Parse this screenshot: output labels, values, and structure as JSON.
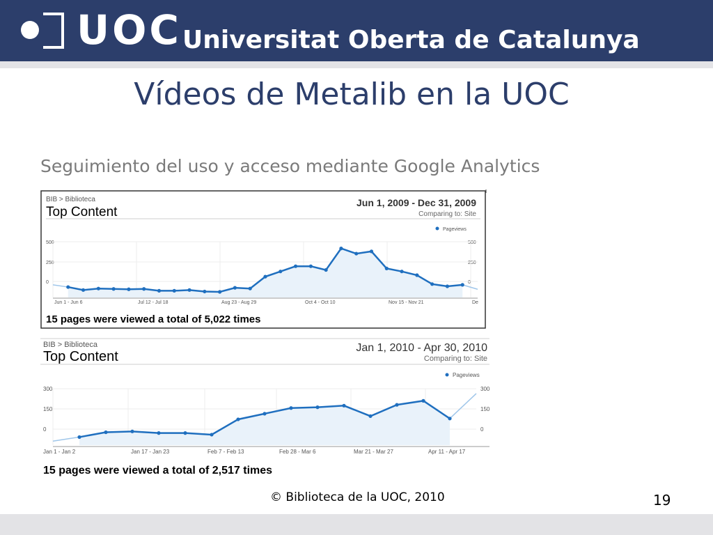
{
  "header": {
    "logo_text": "UOC",
    "university_name": "Universitat Oberta de Catalunya"
  },
  "slide": {
    "title": "Vídeos de Metalib en la UOC",
    "subtitle": "Seguimiento del uso y acceso mediante Google Analytics",
    "footer": "© Biblioteca de la UOC, 2010",
    "page_number": "19"
  },
  "colors": {
    "banner": "#2c3e6b",
    "title": "#2c3e6b",
    "series": "#1f6fbf",
    "area_fill": "#e9f2fa"
  },
  "chart_data": [
    {
      "type": "area",
      "breadcrumb": "BIB > Biblioteca",
      "title": "Top Content",
      "date_range": "Jun 1, 2009 - Dec 31, 2009",
      "comparing": "Comparing to: Site",
      "legend": "Pageviews",
      "yticks": [
        "500",
        "250",
        "0"
      ],
      "ylim": [
        -150,
        600
      ],
      "xticks": [
        "Jun 1 - Jun 6",
        "Jul 12 - Jul 18",
        "Aug 23 - Aug 29",
        "Oct 4 - Oct 10",
        "Nov 15 - Nov 21",
        "De"
      ],
      "series": [
        {
          "name": "Pageviews",
          "values": [
            20,
            -10,
            -50,
            -30,
            -35,
            -40,
            -35,
            -60,
            -60,
            -50,
            -70,
            -75,
            -20,
            -30,
            130,
            200,
            270,
            270,
            220,
            510,
            440,
            470,
            240,
            200,
            150,
            30,
            0,
            20,
            -40
          ]
        }
      ],
      "summary": "15 pages were viewed a total of 5,022 times"
    },
    {
      "type": "area",
      "breadcrumb": "BIB > Biblioteca",
      "title": "Top Content",
      "date_range": "Jan 1, 2010 - Apr 30, 2010",
      "comparing": "Comparing to: Site",
      "legend": "Pageviews",
      "yticks": [
        "300",
        "150",
        "0"
      ],
      "ylim": [
        -50,
        300
      ],
      "xticks": [
        "Jan 1 - Jan 2",
        "Jan 17 - Jan 23",
        "Feb 7 - Feb 13",
        "Feb 28 - Mar 6",
        "Mar 21 - Mar 27",
        "Apr 11 - Apr 17"
      ],
      "series": [
        {
          "name": "Pageviews",
          "values": [
            -25,
            0,
            30,
            35,
            25,
            25,
            15,
            110,
            145,
            180,
            185,
            195,
            130,
            200,
            225,
            115,
            270
          ]
        }
      ],
      "summary": "15 pages were viewed a total of 2,517 times"
    }
  ]
}
